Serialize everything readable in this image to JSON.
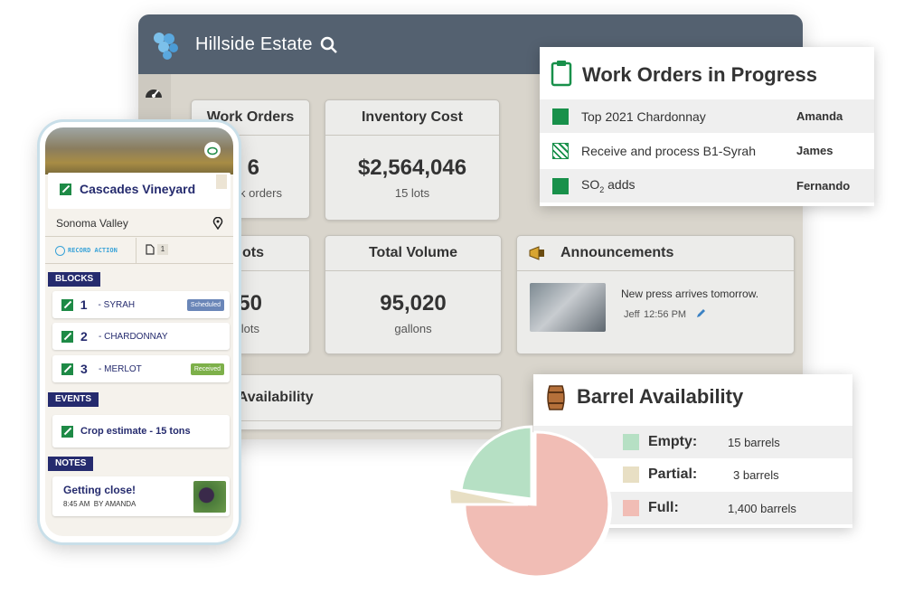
{
  "dashboard": {
    "title": "Hillside Estate",
    "cards": {
      "work_orders": {
        "title": "Work Orders",
        "value": "6",
        "sub": "k orders"
      },
      "inventory_cost": {
        "title": "Inventory Cost",
        "value": "$2,564,046",
        "sub": "15 lots"
      },
      "lots": {
        "title": "ots",
        "value": "50",
        "sub": "lots"
      },
      "total_volume": {
        "title": "Total Volume",
        "value": "95,020",
        "sub": "gallons"
      },
      "announcements": {
        "title": "Announcements",
        "text": "New press arrives tomorrow.",
        "author": "Jeff",
        "time": "12:56 PM"
      },
      "availability": {
        "title": "k Availability"
      }
    }
  },
  "work_orders_panel": {
    "title": "Work Orders in Progress",
    "rows": [
      {
        "task": "Top 2021 Chardonnay",
        "assignee": "Amanda"
      },
      {
        "task": "Receive and process B1-Syrah",
        "assignee": "James"
      },
      {
        "task_prefix": "SO",
        "task_sub": "2",
        "task_suffix": " adds",
        "assignee": "Fernando"
      }
    ]
  },
  "barrel_panel": {
    "title": "Barrel Availability",
    "rows": [
      {
        "label": "Empty:",
        "value": "15 barrels",
        "color": "#b6e0c4"
      },
      {
        "label": "Partial:",
        "value": "3 barrels",
        "color": "#e8dfc4"
      },
      {
        "label": "Full:",
        "value": "1,400 barrels",
        "color": "#f1bdb5"
      }
    ]
  },
  "chart_data": {
    "type": "pie",
    "series": [
      {
        "name": "Empty",
        "value": 15
      },
      {
        "name": "Partial",
        "value": 3
      },
      {
        "name": "Full",
        "value": 1400
      }
    ]
  },
  "phone": {
    "vineyard": "Cascades Vineyard",
    "location": "Sonoma Valley",
    "record_action": "RECORD ACTION",
    "doc_count": "1",
    "blocks_header": "BLOCKS",
    "blocks": [
      {
        "num": "1",
        "name": "- SYRAH",
        "tag": "Scheduled"
      },
      {
        "num": "2",
        "name": "- CHARDONNAY",
        "tag": ""
      },
      {
        "num": "3",
        "name": "- MERLOT",
        "tag": "Received"
      }
    ],
    "events_header": "EVENTS",
    "event": "Crop estimate - 15 tons",
    "notes_header": "NOTES",
    "note_title": "Getting close!",
    "note_meta": "8:45 AM  BY AMANDA"
  },
  "colors": {
    "accent_green": "#18904a",
    "navy": "#252b6e",
    "header_slate": "#546170"
  }
}
